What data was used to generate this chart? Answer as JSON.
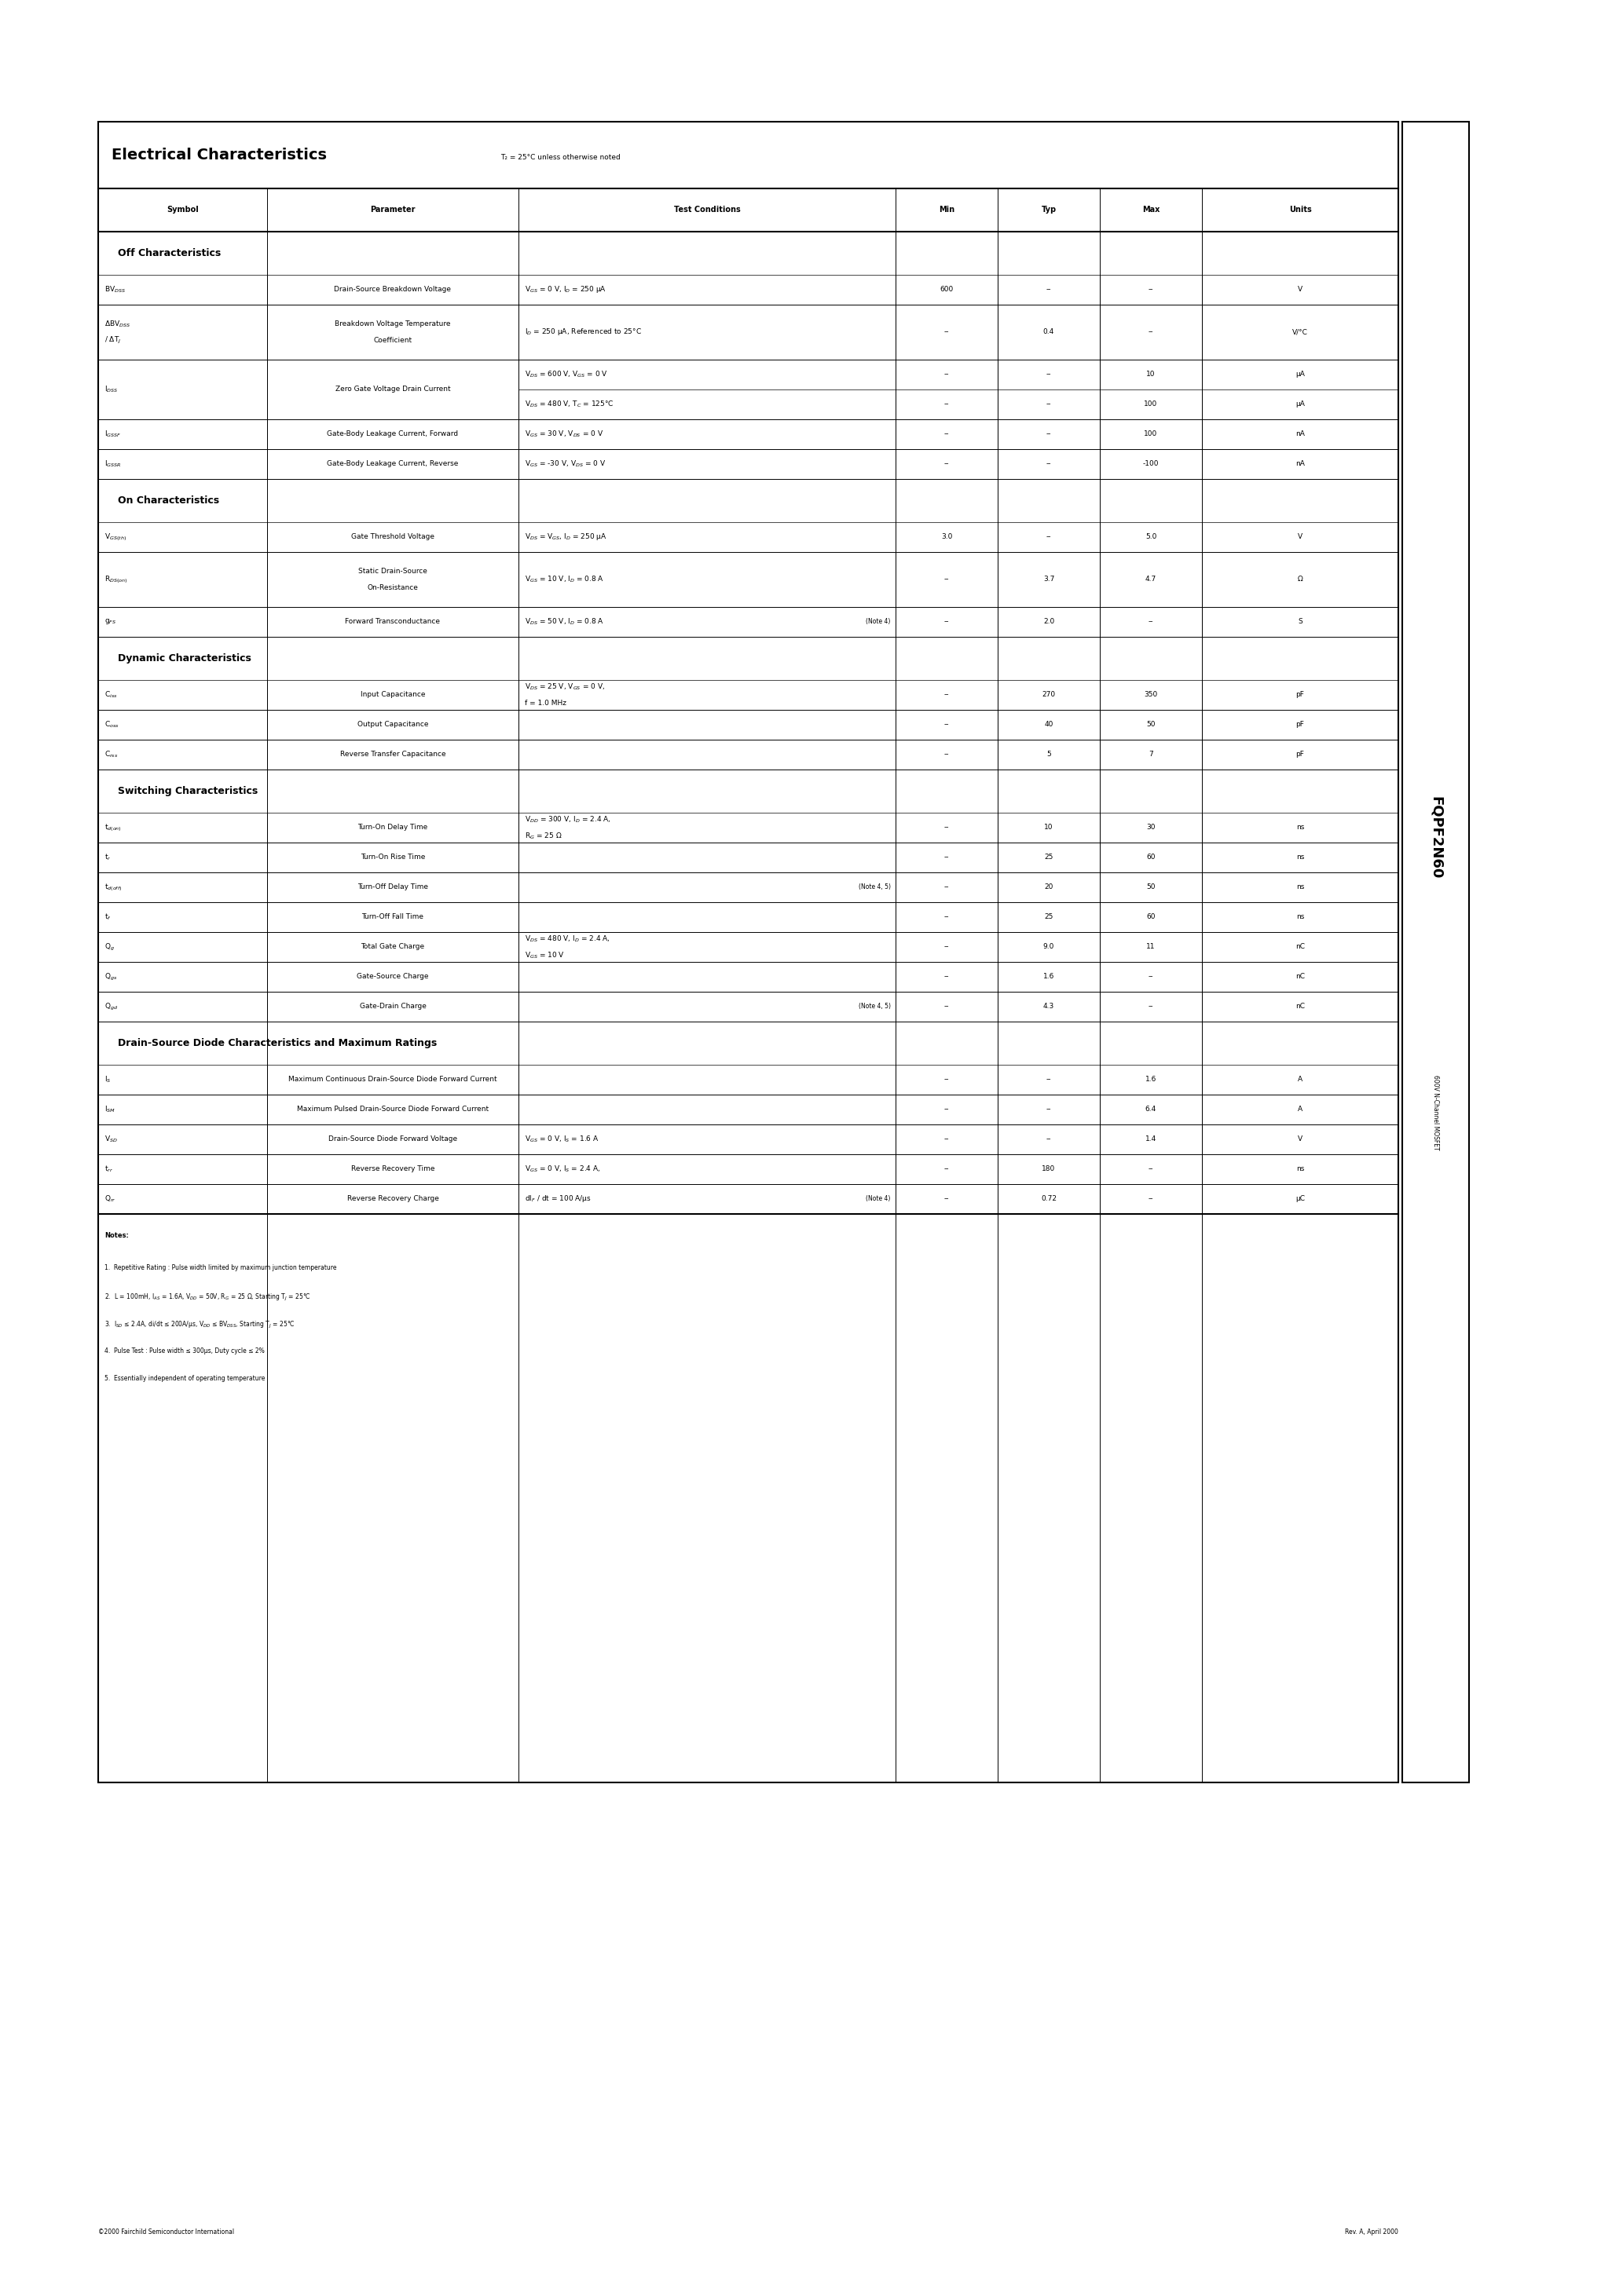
{
  "title": "Electrical Characteristics",
  "title_note": "T₂ = 25°C unless otherwise noted",
  "part_number": "FQPF2N60",
  "header_cols": [
    "Symbol",
    "Parameter",
    "Test Conditions",
    "Min",
    "Typ",
    "Max",
    "Units"
  ],
  "footer_left": "©2000 Fairchild Semiconductor International",
  "footer_right": "Rev. A, April 2000",
  "page_bg": "#ffffff"
}
